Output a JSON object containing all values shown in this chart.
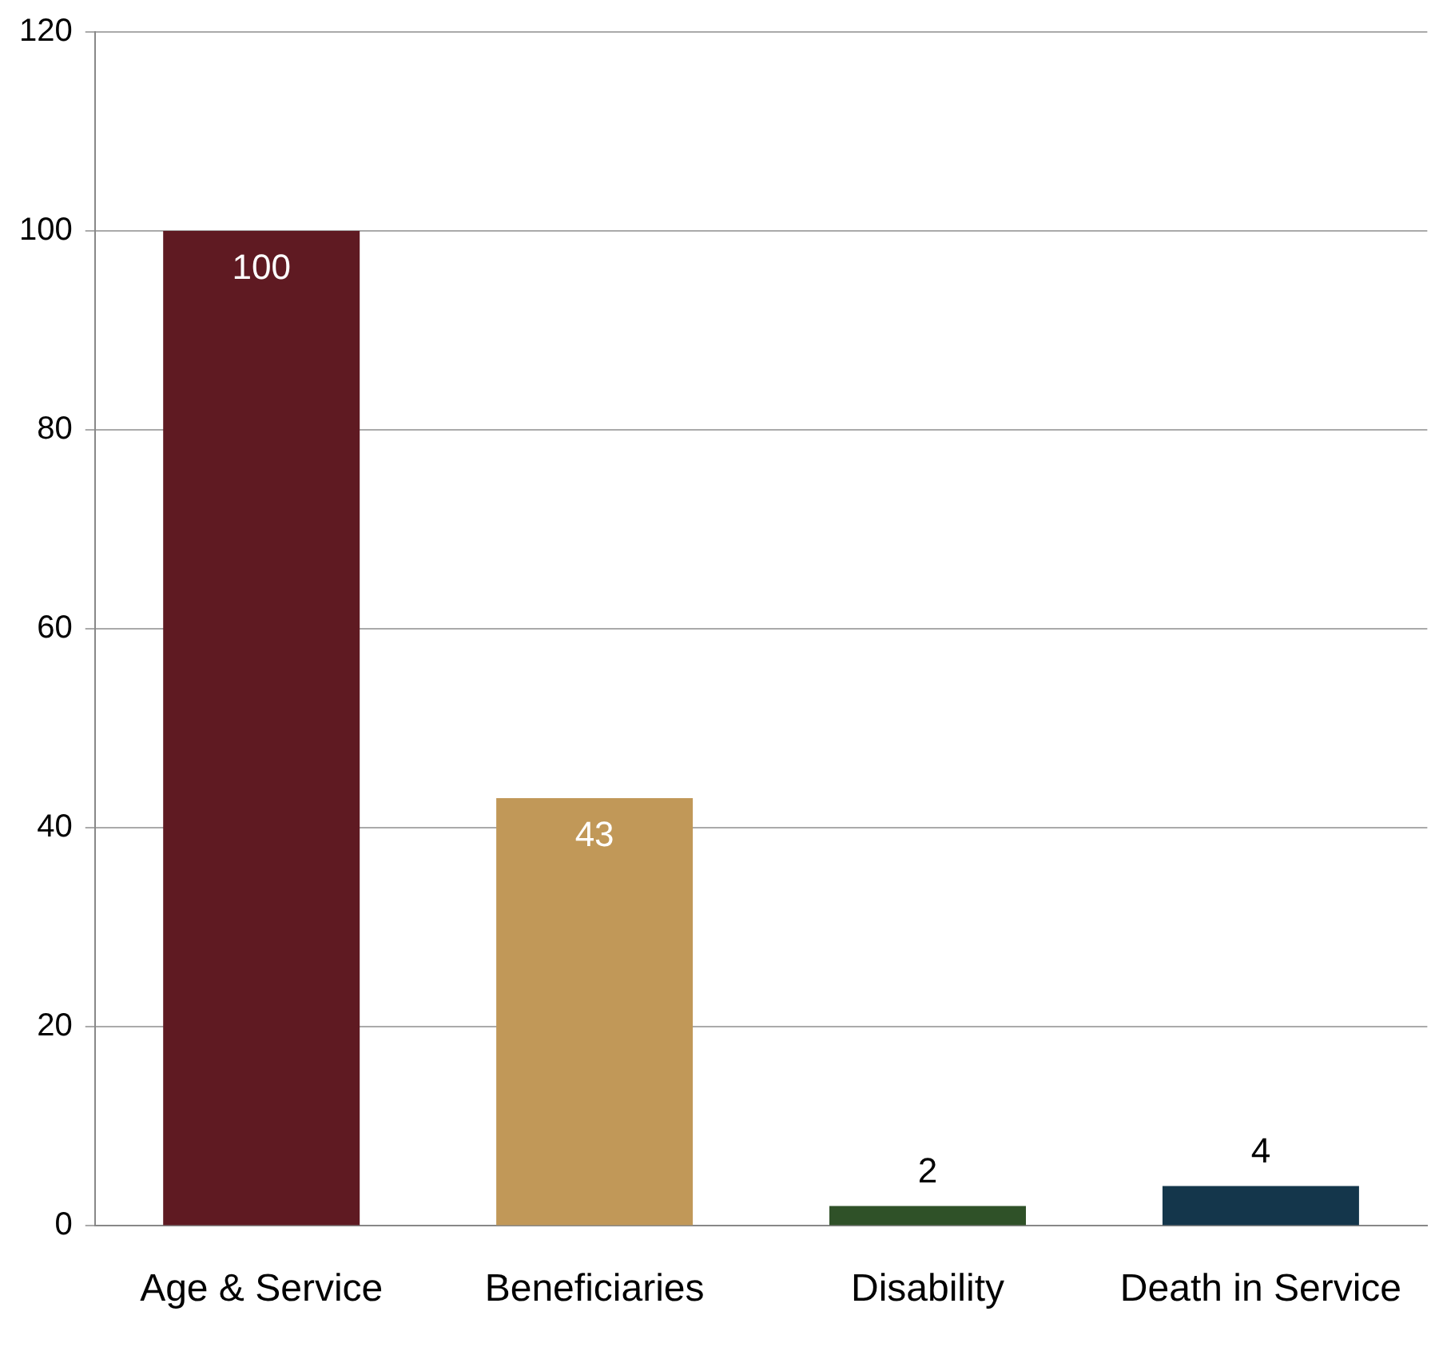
{
  "chart_data": {
    "type": "bar",
    "categories": [
      "Age & Service",
      "Beneficiaries",
      "Disability",
      "Death in Service"
    ],
    "values": [
      100,
      43,
      2,
      4
    ],
    "colors": [
      "#5f1a22",
      "#c19858",
      "#2f5128",
      "#14364b"
    ],
    "ylim": [
      0,
      120
    ],
    "yticks": [
      0,
      20,
      40,
      60,
      80,
      100,
      120
    ],
    "grid": "y",
    "data_labels": true,
    "legend": false
  }
}
